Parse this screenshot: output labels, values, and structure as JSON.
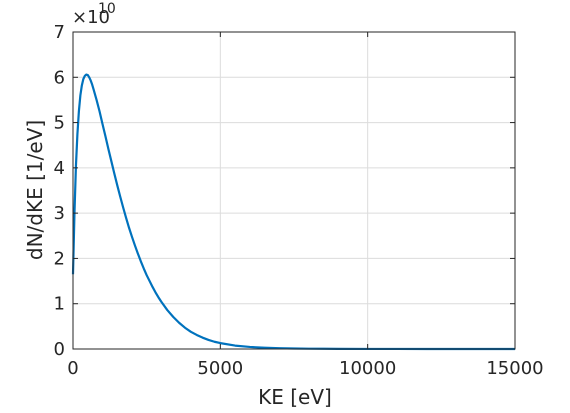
{
  "chart_data": {
    "type": "line",
    "title": "",
    "xlabel": "KE [eV]",
    "ylabel": "dN/dKE [1/eV]",
    "xlim": [
      0,
      15000
    ],
    "ylim": [
      0,
      7
    ],
    "xticks": [
      0,
      5000,
      10000,
      15000
    ],
    "yticks": [
      0,
      1,
      2,
      3,
      4,
      5,
      6,
      7
    ],
    "xtick_labels": [
      "0",
      "5000",
      "10000",
      "15000"
    ],
    "ytick_labels": [
      "0",
      "1",
      "2",
      "3",
      "4",
      "5",
      "6",
      "7"
    ],
    "y_multiplier_base": "×10",
    "y_multiplier_exponent": "10",
    "grid": true,
    "series_color": "#0072bd",
    "series": [
      {
        "name": "",
        "x": [
          0,
          50,
          100,
          150,
          200,
          250,
          300,
          350,
          400,
          450,
          500,
          550,
          600,
          650,
          700,
          800,
          900,
          1000,
          1100,
          1200,
          1300,
          1400,
          1500,
          1600,
          1700,
          1800,
          1900,
          2000,
          2100,
          2200,
          2300,
          2400,
          2500,
          2600,
          2700,
          2800,
          2900,
          3000,
          3200,
          3400,
          3600,
          3800,
          4000,
          4200,
          4400,
          4600,
          4800,
          5000,
          5500,
          6000,
          6500,
          7000,
          7500,
          8000,
          8500,
          9000,
          10000,
          11000,
          12000,
          13000,
          14000,
          15000
        ],
        "y": [
          1.65,
          3.0,
          4.05,
          4.75,
          5.25,
          5.6,
          5.82,
          5.96,
          6.03,
          6.06,
          6.05,
          6.0,
          5.93,
          5.84,
          5.73,
          5.5,
          5.25,
          4.97,
          4.7,
          4.42,
          4.15,
          3.88,
          3.62,
          3.37,
          3.13,
          2.9,
          2.68,
          2.48,
          2.29,
          2.11,
          1.94,
          1.78,
          1.63,
          1.5,
          1.37,
          1.25,
          1.14,
          1.04,
          0.86,
          0.71,
          0.58,
          0.47,
          0.38,
          0.31,
          0.25,
          0.2,
          0.16,
          0.13,
          0.075,
          0.045,
          0.028,
          0.017,
          0.011,
          0.007,
          0.005,
          0.003,
          0.0015,
          0.0008,
          0.0004,
          0.0002,
          0.0001,
          0.0
        ]
      }
    ]
  }
}
